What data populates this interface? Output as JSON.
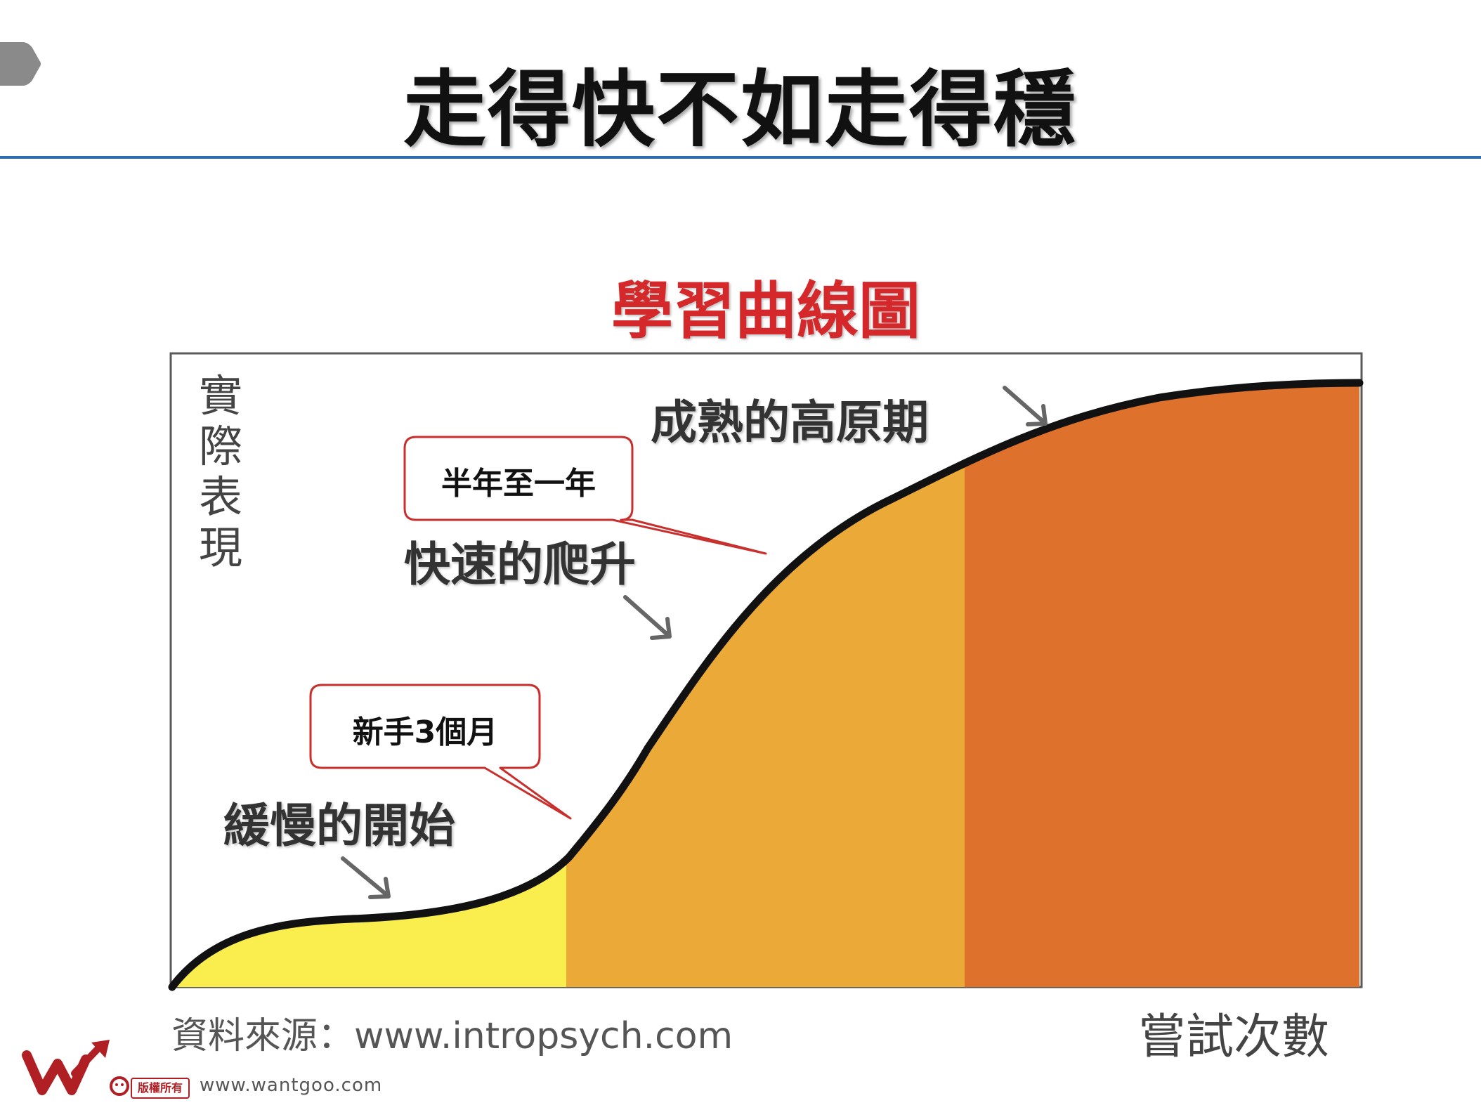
{
  "slide": {
    "title": "走得快不如走得穩"
  },
  "diagram": {
    "title": "學習曲線圖",
    "ylabel": "實際表現",
    "xlabel": "嘗試次數",
    "source": "資料來源：www.intropsych.com",
    "stages": [
      {
        "label": "緩慢的開始",
        "color": "#f9ee4d"
      },
      {
        "label": "快速的爬升",
        "color": "#ebaa38"
      },
      {
        "label": "成熟的高原期",
        "color": "#de722c"
      }
    ],
    "callouts": [
      {
        "text": "新手3個月"
      },
      {
        "text": "半年至一年"
      }
    ],
    "curve_color": "#111111"
  },
  "footer": {
    "badge": "版權所有",
    "url": "www.wantgoo.com",
    "brand_color": "#b01f24"
  }
}
